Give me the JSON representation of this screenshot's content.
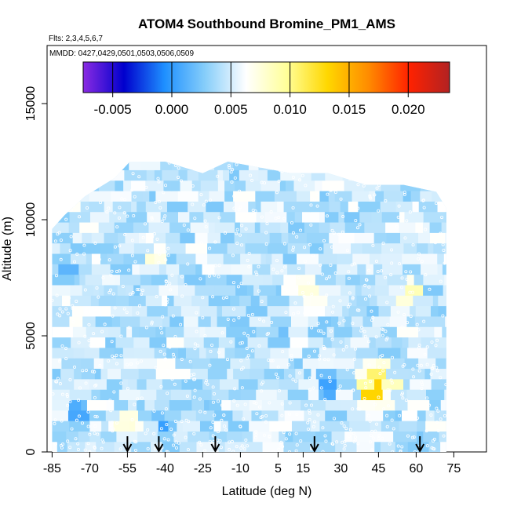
{
  "chart_data": {
    "type": "heatmap",
    "title": "ATOM4 Southbound Bromine_PM1_AMS",
    "flights_note": "Flts: 2,3,4,5,6,7",
    "dates_note": "MMDD: 0427,0429,0501,0503,0506,0509",
    "xlabel": "Latitude (deg N)",
    "ylabel": "Altitude (m)",
    "xlim": [
      -87,
      88
    ],
    "ylim": [
      0,
      17500
    ],
    "x_ticks": [
      -85,
      -70,
      -55,
      -40,
      -25,
      -10,
      5,
      15,
      30,
      45,
      60,
      75
    ],
    "y_ticks": [
      0,
      5000,
      10000,
      15000
    ],
    "colorbar": {
      "vmin": -0.0075,
      "vmax": 0.0235,
      "ticks": [
        -0.005,
        0.0,
        0.005,
        0.01,
        0.015,
        0.02
      ],
      "tick_labels": [
        "-0.005",
        "0.000",
        "0.005",
        "0.010",
        "0.015",
        "0.020"
      ],
      "colors": [
        "#8a2be2",
        "#0000cd",
        "#1e90ff",
        "#87cefa",
        "#ffffff",
        "#ffff99",
        "#ffd700",
        "#ff8c00",
        "#ff2200",
        "#b22222"
      ]
    },
    "data_extent": {
      "lat_range": [
        -85,
        72
      ],
      "alt_top_profile": [
        {
          "lat": -85,
          "alt": 9600
        },
        {
          "lat": -80,
          "alt": 10200
        },
        {
          "lat": -72,
          "alt": 11000
        },
        {
          "lat": -60,
          "alt": 11800
        },
        {
          "lat": -54,
          "alt": 12500
        },
        {
          "lat": -40,
          "alt": 12500
        },
        {
          "lat": -25,
          "alt": 12000
        },
        {
          "lat": -15,
          "alt": 12500
        },
        {
          "lat": 10,
          "alt": 12000
        },
        {
          "lat": 25,
          "alt": 12000
        },
        {
          "lat": 40,
          "alt": 11500
        },
        {
          "lat": 55,
          "alt": 11500
        },
        {
          "lat": 68,
          "alt": 11200
        },
        {
          "lat": 72,
          "alt": 10500
        }
      ]
    },
    "series": [
      {
        "lat": 43,
        "alt": 2800,
        "value": 0.018
      },
      {
        "lat": 44,
        "alt": 3500,
        "value": 0.011
      },
      {
        "lat": 57,
        "alt": 7000,
        "value": 0.011
      },
      {
        "lat": 50,
        "alt": 2800,
        "value": 0.009
      },
      {
        "lat": 20,
        "alt": 7000,
        "value": 0.009
      },
      {
        "lat": -45,
        "alt": 8500,
        "value": 0.008
      },
      {
        "lat": -55,
        "alt": 1200,
        "value": 0.008
      },
      {
        "lat": -75,
        "alt": 1800,
        "value": 0.0
      },
      {
        "lat": -40,
        "alt": 1200,
        "value": 0.0
      },
      {
        "lat": 25,
        "alt": 2800,
        "value": 0.0
      },
      {
        "lat": -80,
        "alt": 8000,
        "value": 0.001
      },
      {
        "lat": 5,
        "alt": 5200,
        "value": 0.001
      }
    ],
    "profile_markers_lat": [
      -55,
      -42.5,
      -20,
      19.5,
      61.5
    ]
  }
}
